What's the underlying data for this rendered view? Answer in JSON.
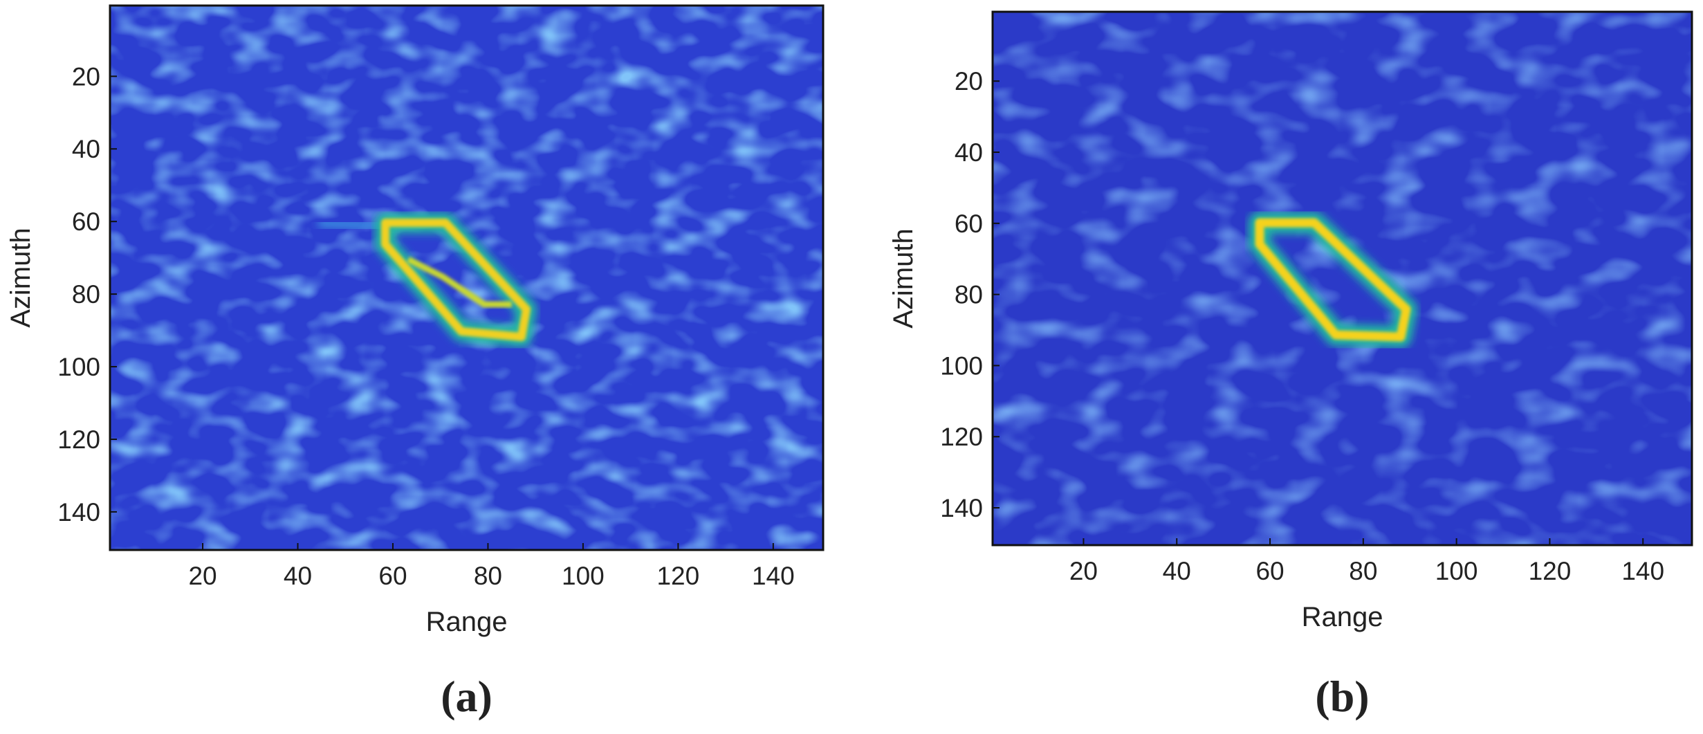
{
  "chart_data": [
    {
      "type": "heatmap",
      "label": "(a)",
      "xlabel": "Range",
      "ylabel": "Azimuth",
      "xlim": [
        0.5,
        150.5
      ],
      "ylim": [
        150.5,
        0.5
      ],
      "xticks": [
        20,
        40,
        60,
        80,
        100,
        120,
        140
      ],
      "yticks": [
        20,
        40,
        60,
        80,
        100,
        120,
        140
      ]
    },
    {
      "type": "heatmap",
      "label": "(b)",
      "xlabel": "Range",
      "ylabel": "Azimuth",
      "xlim": [
        0.5,
        150.5
      ],
      "ylim": [
        150.5,
        0.5
      ],
      "xticks": [
        20,
        40,
        60,
        80,
        100,
        120,
        140
      ],
      "yticks": [
        20,
        40,
        60,
        80,
        100,
        120,
        140
      ]
    }
  ]
}
